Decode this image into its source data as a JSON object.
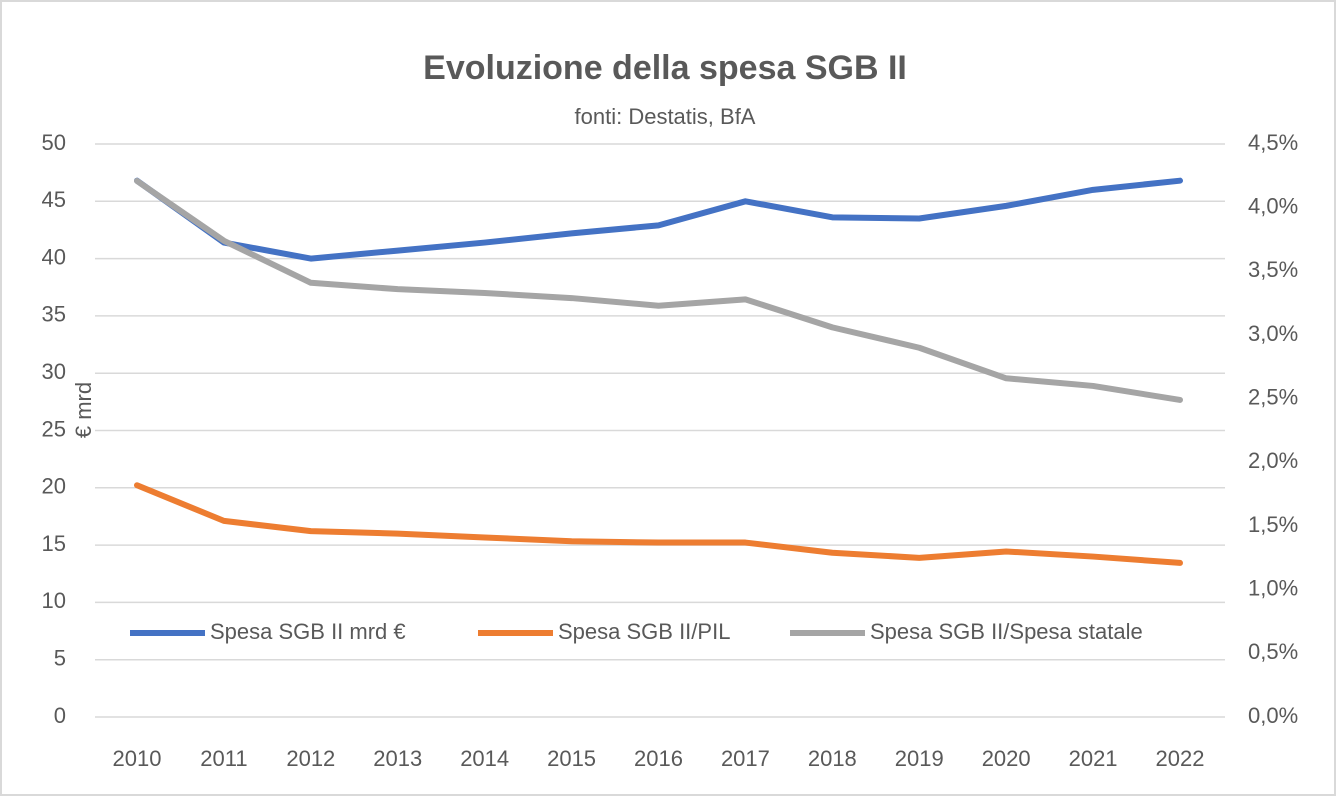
{
  "chart_data": {
    "type": "line",
    "title": "Evoluzione della spesa SGB II",
    "subtitle": "fonti: Destatis, BfA",
    "ylabel": "€ mrd",
    "categories": [
      "2010",
      "2011",
      "2012",
      "2013",
      "2014",
      "2015",
      "2016",
      "2017",
      "2018",
      "2019",
      "2020",
      "2021",
      "2022"
    ],
    "series": [
      {
        "name": "Spesa SGB II mrd €",
        "color": "#4472c4",
        "axis": "y",
        "values": [
          46.8,
          41.4,
          40.0,
          40.7,
          41.4,
          42.2,
          42.9,
          45.0,
          43.6,
          43.5,
          44.6,
          46.0,
          46.8
        ]
      },
      {
        "name": "Spesa SGB II/PIL",
        "color": "#ed7d31",
        "axis": "y2",
        "values": [
          1.82,
          1.54,
          1.46,
          1.44,
          1.41,
          1.38,
          1.37,
          1.37,
          1.29,
          1.25,
          1.3,
          1.26,
          1.21
        ]
      },
      {
        "name": "Spesa SGB II/Spesa statale",
        "color": "#a5a5a5",
        "axis": "y2",
        "values": [
          4.21,
          3.74,
          3.41,
          3.36,
          3.33,
          3.29,
          3.23,
          3.28,
          3.06,
          2.9,
          2.66,
          2.6,
          2.49
        ]
      }
    ],
    "ylim": [
      0,
      50
    ],
    "yticks": [
      0,
      5,
      10,
      15,
      20,
      25,
      30,
      35,
      40,
      45,
      50
    ],
    "y2lim": [
      0,
      4.5
    ],
    "y2ticks": [
      {
        "value": 0,
        "label": "0,0%"
      },
      {
        "value": 0.5,
        "label": "0,5%"
      },
      {
        "value": 1,
        "label": "1,0%"
      },
      {
        "value": 1.5,
        "label": "1,5%"
      },
      {
        "value": 2,
        "label": "2,0%"
      },
      {
        "value": 2.5,
        "label": "2,5%"
      },
      {
        "value": 3,
        "label": "3,0%"
      },
      {
        "value": 3.5,
        "label": "3,5%"
      },
      {
        "value": 4,
        "label": "4,0%"
      },
      {
        "value": 4.5,
        "label": "4,5%"
      }
    ],
    "grid": true
  }
}
